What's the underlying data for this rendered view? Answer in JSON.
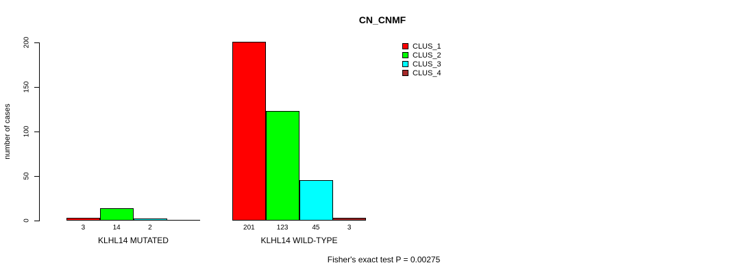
{
  "title": "CN_CNMF",
  "y_axis": {
    "label": "number of cases"
  },
  "footer": "Fisher's exact test P = 0.00275",
  "chart_data": {
    "type": "bar",
    "title": "CN_CNMF",
    "xlabel": "",
    "ylabel": "number of cases",
    "ylim": [
      0,
      200
    ],
    "yticks": [
      0,
      50,
      100,
      150,
      200
    ],
    "grid": false,
    "legend_position": "right",
    "categories": [
      "KLHL14 MUTATED",
      "KLHL14 WILD-TYPE"
    ],
    "series": [
      {
        "name": "CLUS_1",
        "color": "#FF0000",
        "values": [
          3,
          201
        ]
      },
      {
        "name": "CLUS_2",
        "color": "#00FF00",
        "values": [
          14,
          123
        ]
      },
      {
        "name": "CLUS_3",
        "color": "#00FFFF",
        "values": [
          2,
          45
        ]
      },
      {
        "name": "CLUS_4",
        "color": "#A52A2A",
        "values": [
          0,
          3
        ]
      }
    ],
    "bar_value_labels": [
      [
        "3",
        "14",
        "2",
        ""
      ],
      [
        "201",
        "123",
        "45",
        "3"
      ]
    ],
    "annotation": "Fisher's exact test P = 0.00275"
  }
}
